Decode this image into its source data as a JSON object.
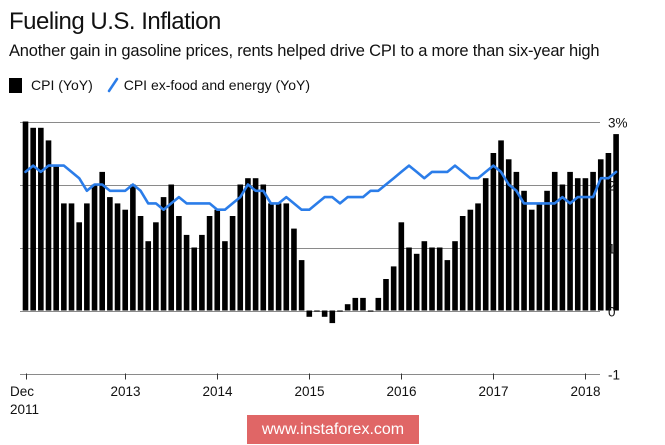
{
  "chart_data": {
    "type": "bar",
    "title": "Fueling U.S. Inflation",
    "subtitle": "Another gain in gasoline prices, rents helped drive CPI to a more than six-year high",
    "xlabel": "",
    "ylabel": "",
    "ylim": [
      -1,
      3
    ],
    "yticks": [
      {
        "value": 3,
        "label": "3%"
      },
      {
        "value": 2,
        "label": "2"
      },
      {
        "value": 1,
        "label": "1"
      },
      {
        "value": 0,
        "label": "0"
      },
      {
        "value": -1,
        "label": "-1"
      }
    ],
    "grid": true,
    "legend_position": "top-left",
    "start_month": "Dec 2011",
    "end_month": "May 2018",
    "xticks": [
      {
        "month_index": 0,
        "label": [
          "Dec",
          "2011"
        ]
      },
      {
        "month_index": 13,
        "label": [
          "2013"
        ]
      },
      {
        "month_index": 25,
        "label": [
          "2014"
        ]
      },
      {
        "month_index": 37,
        "label": [
          "2015"
        ]
      },
      {
        "month_index": 49,
        "label": [
          "2016"
        ]
      },
      {
        "month_index": 61,
        "label": [
          "2017"
        ]
      },
      {
        "month_index": 73,
        "label": [
          "2018"
        ]
      }
    ],
    "series": [
      {
        "name": "CPI (YoY)",
        "kind": "bar",
        "color": "#000000",
        "values": [
          3.0,
          2.9,
          2.9,
          2.7,
          2.3,
          1.7,
          1.7,
          1.4,
          1.7,
          2.0,
          2.2,
          1.8,
          1.7,
          1.6,
          2.0,
          1.5,
          1.1,
          1.4,
          1.8,
          2.0,
          1.5,
          1.2,
          1.0,
          1.2,
          1.5,
          1.6,
          1.1,
          1.5,
          2.0,
          2.1,
          2.1,
          2.0,
          1.7,
          1.7,
          1.7,
          1.3,
          0.8,
          -0.1,
          0.0,
          -0.1,
          -0.2,
          0.0,
          0.1,
          0.2,
          0.2,
          0.0,
          0.2,
          0.5,
          0.7,
          1.4,
          1.0,
          0.9,
          1.1,
          1.0,
          1.0,
          0.8,
          1.1,
          1.5,
          1.6,
          1.7,
          2.1,
          2.5,
          2.7,
          2.4,
          2.2,
          1.9,
          1.6,
          1.7,
          1.9,
          2.2,
          2.0,
          2.2,
          2.1,
          2.1,
          2.2,
          2.4,
          2.5,
          2.8
        ]
      },
      {
        "name": "CPI ex-food and energy (YoY)",
        "kind": "line",
        "color": "#2b7de9",
        "values": [
          2.2,
          2.3,
          2.2,
          2.3,
          2.3,
          2.3,
          2.2,
          2.1,
          1.9,
          2.0,
          2.0,
          1.9,
          1.9,
          1.9,
          2.0,
          1.9,
          1.7,
          1.7,
          1.6,
          1.7,
          1.8,
          1.7,
          1.7,
          1.7,
          1.7,
          1.6,
          1.6,
          1.7,
          1.8,
          2.0,
          1.9,
          1.9,
          1.7,
          1.7,
          1.8,
          1.7,
          1.6,
          1.6,
          1.7,
          1.8,
          1.8,
          1.7,
          1.8,
          1.8,
          1.8,
          1.9,
          1.9,
          2.0,
          2.1,
          2.2,
          2.3,
          2.2,
          2.1,
          2.2,
          2.2,
          2.2,
          2.3,
          2.2,
          2.1,
          2.1,
          2.2,
          2.3,
          2.2,
          2.0,
          1.9,
          1.7,
          1.7,
          1.7,
          1.7,
          1.7,
          1.8,
          1.7,
          1.8,
          1.8,
          1.8,
          2.1,
          2.1,
          2.2
        ]
      }
    ]
  },
  "legend": {
    "bar_label": "CPI (YoY)",
    "line_label": "CPI ex-food and energy (YoY)"
  },
  "watermark": "www.instaforex.com"
}
